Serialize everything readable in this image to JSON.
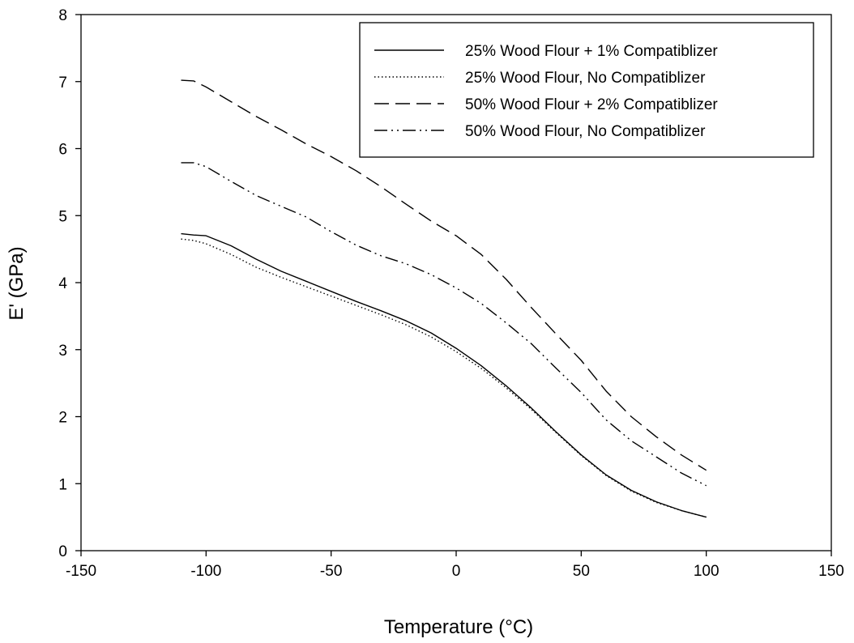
{
  "chart_data": {
    "type": "line",
    "title": "",
    "xlabel": "Temperature (°C)",
    "ylabel": "E' (GPa)",
    "xlim": [
      -150,
      150
    ],
    "ylim": [
      0,
      8
    ],
    "xticks": [
      -150,
      -100,
      -50,
      0,
      50,
      100,
      150
    ],
    "yticks": [
      0,
      1,
      2,
      3,
      4,
      5,
      6,
      7,
      8
    ],
    "xtick_labels": [
      "-150",
      "-100",
      "-50",
      "0",
      "50",
      "100",
      "150"
    ],
    "ytick_labels": [
      "0",
      "1",
      "2",
      "3",
      "4",
      "5",
      "6",
      "7",
      "8"
    ],
    "grid": false,
    "legend_position": "top-right",
    "series": [
      {
        "name": "25% Wood Flour + 1% Compatiblizer",
        "style": "solid",
        "x": [
          -110,
          -105,
          -100,
          -90,
          -80,
          -70,
          -60,
          -50,
          -40,
          -30,
          -20,
          -10,
          0,
          10,
          20,
          30,
          40,
          50,
          60,
          70,
          80,
          90,
          100
        ],
        "y": [
          4.73,
          4.71,
          4.7,
          4.55,
          4.35,
          4.17,
          4.02,
          3.87,
          3.72,
          3.58,
          3.43,
          3.25,
          3.02,
          2.76,
          2.46,
          2.13,
          1.77,
          1.43,
          1.13,
          0.9,
          0.73,
          0.6,
          0.5
        ]
      },
      {
        "name": "25% Wood Flour, No Compatiblizer",
        "style": "dotted",
        "x": [
          -110,
          -105,
          -100,
          -90,
          -80,
          -70,
          -60,
          -50,
          -40,
          -30,
          -20,
          -10,
          0,
          10,
          20,
          30,
          40,
          50,
          60,
          70,
          80,
          90,
          100
        ],
        "y": [
          4.65,
          4.63,
          4.58,
          4.42,
          4.23,
          4.08,
          3.94,
          3.8,
          3.66,
          3.52,
          3.37,
          3.19,
          2.97,
          2.72,
          2.43,
          2.11,
          1.76,
          1.42,
          1.12,
          0.89,
          0.72,
          0.6,
          0.5
        ]
      },
      {
        "name": "50% Wood Flour + 2% Compatiblizer",
        "style": "dashed",
        "x": [
          -110,
          -105,
          -100,
          -90,
          -80,
          -70,
          -60,
          -50,
          -40,
          -30,
          -20,
          -10,
          0,
          10,
          20,
          30,
          40,
          50,
          60,
          70,
          80,
          90,
          100
        ],
        "y": [
          7.02,
          7.01,
          6.92,
          6.7,
          6.48,
          6.28,
          6.07,
          5.88,
          5.67,
          5.43,
          5.17,
          4.92,
          4.7,
          4.42,
          4.05,
          3.63,
          3.23,
          2.84,
          2.38,
          2.0,
          1.7,
          1.43,
          1.2
        ]
      },
      {
        "name": "50% Wood Flour, No Compatiblizer",
        "style": "dashdotdot",
        "x": [
          -110,
          -105,
          -100,
          -90,
          -80,
          -70,
          -60,
          -50,
          -40,
          -30,
          -20,
          -10,
          0,
          10,
          20,
          30,
          40,
          50,
          60,
          70,
          80,
          90,
          100
        ],
        "y": [
          5.79,
          5.79,
          5.73,
          5.51,
          5.3,
          5.14,
          4.98,
          4.76,
          4.56,
          4.4,
          4.28,
          4.12,
          3.92,
          3.69,
          3.4,
          3.09,
          2.72,
          2.36,
          1.95,
          1.64,
          1.4,
          1.16,
          0.97
        ]
      }
    ]
  },
  "colors": {
    "line": "#000000",
    "background": "#ffffff"
  }
}
